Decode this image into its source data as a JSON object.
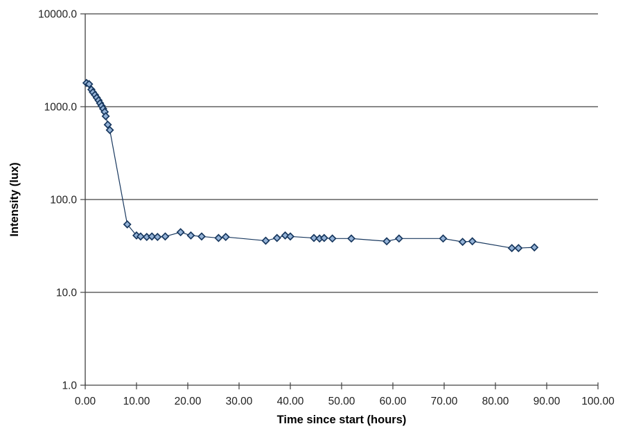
{
  "chart_data": {
    "type": "line",
    "title": "",
    "xlabel": "Time since start (hours)",
    "ylabel": "Intensity (lux)",
    "legend_position": "none",
    "x_axis": {
      "scale": "linear",
      "min": 0,
      "max": 100,
      "tick_values": [
        0,
        10,
        20,
        30,
        40,
        50,
        60,
        70,
        80,
        90,
        100
      ],
      "tick_labels": [
        "0.00",
        "10.00",
        "20.00",
        "30.00",
        "40.00",
        "50.00",
        "60.00",
        "70.00",
        "80.00",
        "90.00",
        "100.00"
      ],
      "grid": false
    },
    "y_axis": {
      "scale": "log",
      "min": 1,
      "max": 10000,
      "tick_values": [
        1,
        10,
        100,
        1000,
        10000
      ],
      "tick_labels": [
        "1.0",
        "10.0",
        "100.0",
        "1000.0",
        "10000.0"
      ],
      "grid": true
    },
    "series": [
      {
        "name": "Intensity",
        "marker": "diamond",
        "points": [
          [
            0.25,
            1800
          ],
          [
            0.75,
            1750
          ],
          [
            1.2,
            1530
          ],
          [
            1.5,
            1430
          ],
          [
            1.9,
            1340
          ],
          [
            2.25,
            1250
          ],
          [
            2.6,
            1170
          ],
          [
            2.9,
            1090
          ],
          [
            3.2,
            1020
          ],
          [
            3.5,
            950
          ],
          [
            3.8,
            880
          ],
          [
            4.0,
            790
          ],
          [
            4.4,
            640
          ],
          [
            4.8,
            560
          ],
          [
            8.2,
            54
          ],
          [
            10.0,
            41
          ],
          [
            10.8,
            40
          ],
          [
            12.0,
            39.5
          ],
          [
            13.0,
            40
          ],
          [
            14.1,
            39.5
          ],
          [
            15.6,
            40
          ],
          [
            18.6,
            44.5
          ],
          [
            20.6,
            41
          ],
          [
            22.7,
            40
          ],
          [
            26.0,
            38.5
          ],
          [
            27.4,
            39.5
          ],
          [
            35.2,
            36
          ],
          [
            37.4,
            38.5
          ],
          [
            39.0,
            41
          ],
          [
            40.0,
            40
          ],
          [
            44.6,
            38.5
          ],
          [
            45.7,
            38
          ],
          [
            46.6,
            38.5
          ],
          [
            48.2,
            38
          ],
          [
            51.9,
            38
          ],
          [
            58.8,
            35.5
          ],
          [
            61.2,
            38
          ],
          [
            69.8,
            38
          ],
          [
            73.6,
            35
          ],
          [
            75.5,
            35.5
          ],
          [
            83.2,
            30
          ],
          [
            84.5,
            30
          ],
          [
            87.6,
            30.5
          ]
        ]
      }
    ],
    "style": {
      "background": "#FFFFFF",
      "marker_fill": "#95B3D7",
      "marker_stroke": "#17375E",
      "line_color": "#17375E",
      "grid_color": "#404040",
      "axis_color": "#404040",
      "tick_text_color": "#1F1F1F",
      "title_text_color": "#000000"
    }
  }
}
